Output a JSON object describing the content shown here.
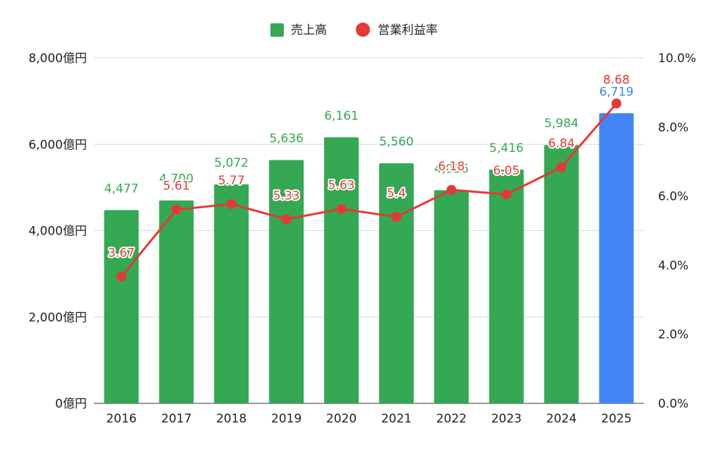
{
  "chart_data": {
    "type": "bar",
    "title": "",
    "categories": [
      "2016",
      "2017",
      "2018",
      "2019",
      "2020",
      "2021",
      "2022",
      "2023",
      "2024",
      "2025"
    ],
    "series": [
      {
        "name": "売上高",
        "kind": "bar",
        "axis": "left",
        "values": [
          4477,
          4700,
          5072,
          5636,
          6161,
          5560,
          4936,
          5416,
          5984,
          6719
        ],
        "labels": [
          "4,477",
          "4,700",
          "5,072",
          "5,636",
          "6,161",
          "5,560",
          "4,936",
          "5,416",
          "5,984",
          "6,719"
        ],
        "color": "#34a853",
        "highlight_color": "#4285f4",
        "highlight_index": 9
      },
      {
        "name": "営業利益率",
        "kind": "line",
        "axis": "right",
        "values": [
          3.67,
          5.61,
          5.77,
          5.33,
          5.63,
          5.4,
          6.18,
          6.05,
          6.84,
          8.68
        ],
        "labels": [
          "3.67",
          "5.61",
          "5.77",
          "5.33",
          "5.63",
          "5.4",
          "6.18",
          "6.05",
          "6.84",
          "8.68"
        ],
        "color": "#e53935"
      }
    ],
    "y_left": {
      "range": [
        0,
        8000
      ],
      "ticks": [
        0,
        2000,
        4000,
        6000,
        8000
      ],
      "tick_labels": [
        "0億円",
        "2,000億円",
        "4,000億円",
        "6,000億円",
        "8,000億円"
      ]
    },
    "y_right": {
      "range": [
        0,
        10
      ],
      "ticks": [
        0,
        2,
        4,
        6,
        8,
        10
      ],
      "tick_labels": [
        "0.0%",
        "2.0%",
        "4.0%",
        "6.0%",
        "8.0%",
        "10.0%"
      ]
    },
    "grid": true,
    "legend_position": "top-center",
    "label_text_color": "#e53935"
  }
}
